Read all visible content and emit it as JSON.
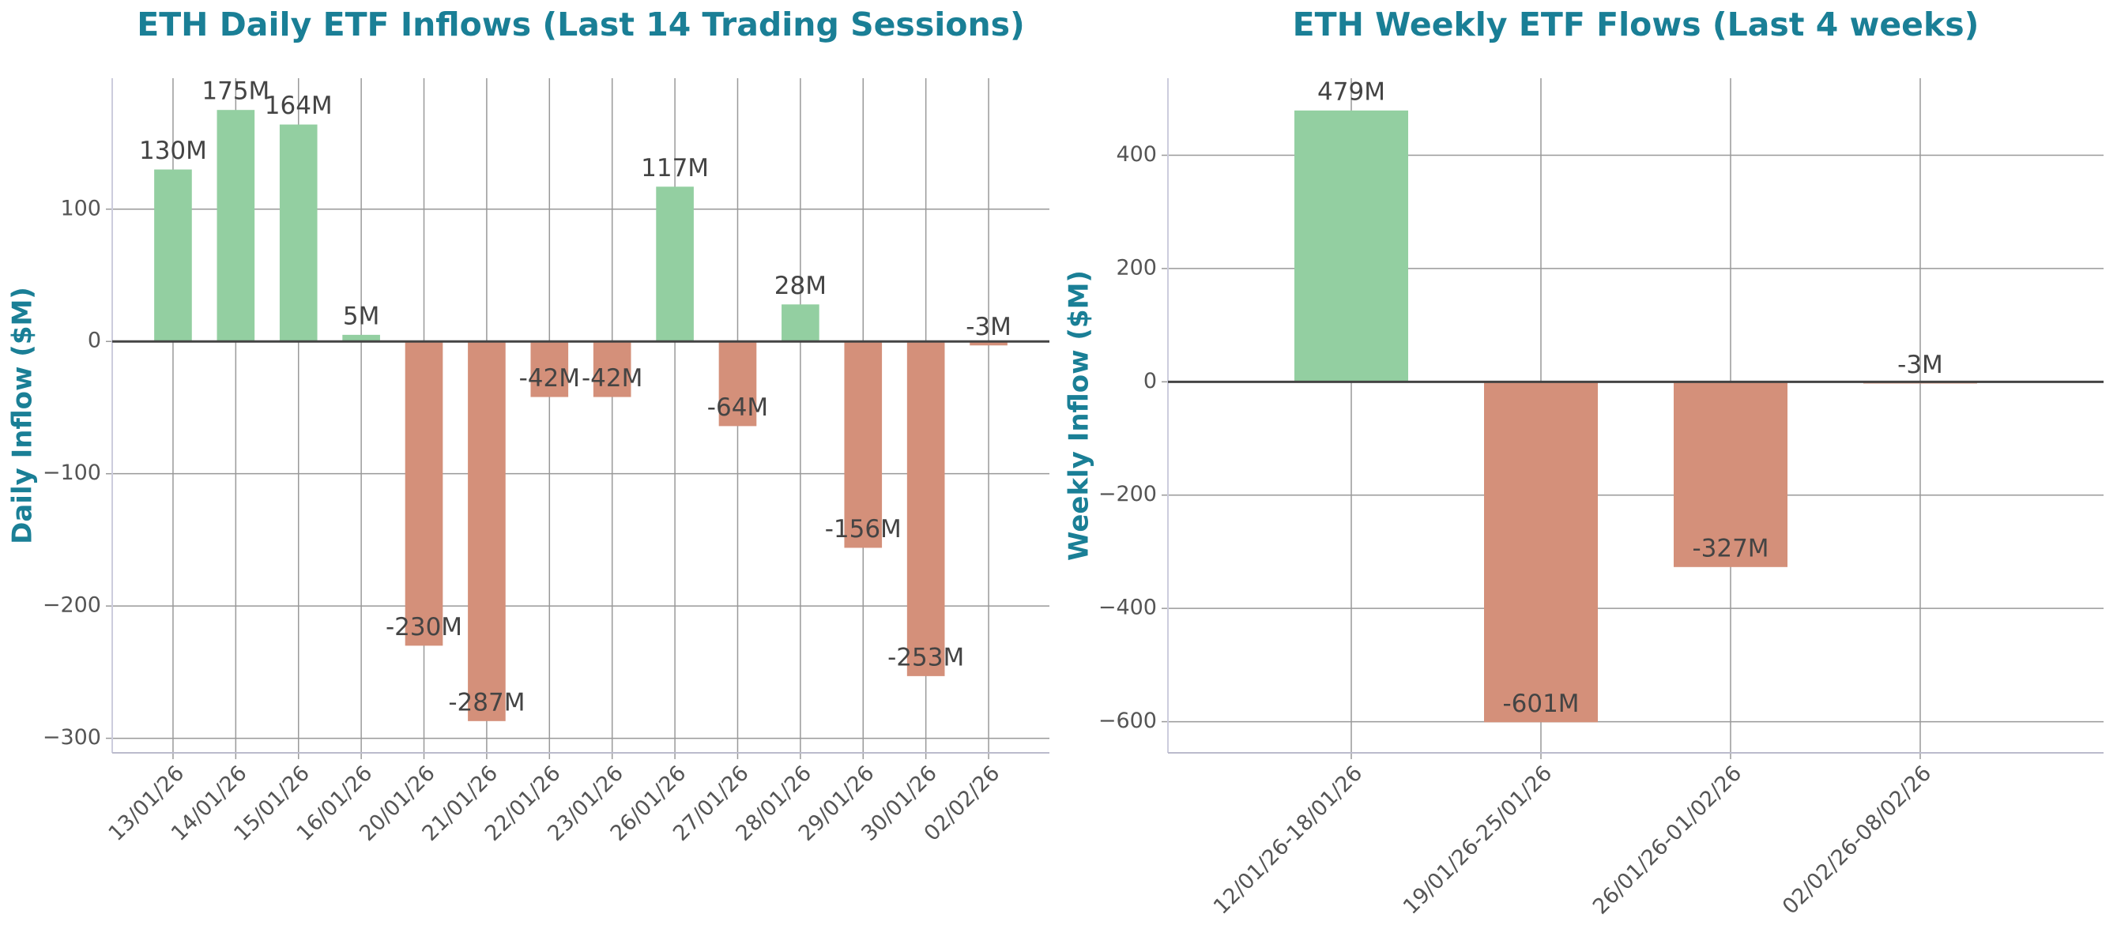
{
  "chart_data": [
    {
      "type": "bar",
      "title": "ETH Daily ETF Inflows (Last 14 Trading Sessions)",
      "ylabel": "Daily Inflow ($M)",
      "categories": [
        "13/01/26",
        "14/01/26",
        "15/01/26",
        "16/01/26",
        "20/01/26",
        "21/01/26",
        "22/01/26",
        "23/01/26",
        "26/01/26",
        "27/01/26",
        "28/01/26",
        "29/01/26",
        "30/01/26",
        "02/02/26"
      ],
      "values": [
        130,
        175,
        164,
        5,
        -230,
        -287,
        -42,
        -42,
        117,
        -64,
        28,
        -156,
        -253,
        -3
      ],
      "value_labels": [
        "130M",
        "175M",
        "164M",
        "5M",
        "-230M",
        "-287M",
        "-42M",
        "-42M",
        "117M",
        "-64M",
        "28M",
        "-156M",
        "-253M",
        "-3M"
      ],
      "positive_color": "#93cfa1",
      "negative_color": "#d4907a",
      "ylim": [
        -311,
        199
      ],
      "yticks": [
        {
          "value": -300,
          "label": "−300"
        },
        {
          "value": -200,
          "label": "−200"
        },
        {
          "value": -100,
          "label": "−100"
        },
        0,
        100
      ],
      "grid": true
    },
    {
      "type": "bar",
      "title": "ETH Weekly ETF Flows (Last 4 weeks)",
      "ylabel": "Weekly Inflow ($M)",
      "categories": [
        "12/01/26-18/01/26",
        "19/01/26-25/01/26",
        "26/01/26-01/02/26",
        "02/02/26-08/02/26"
      ],
      "values": [
        479,
        -601,
        -327,
        -3
      ],
      "value_labels": [
        "479M",
        "-601M",
        "-327M",
        "-3M"
      ],
      "positive_color": "#93cfa1",
      "negative_color": "#d4907a",
      "ylim": [
        -655,
        536
      ],
      "yticks": [
        {
          "value": -600,
          "label": "−600"
        },
        {
          "value": -400,
          "label": "−400"
        },
        {
          "value": -200,
          "label": "−200"
        },
        0,
        200,
        400
      ],
      "grid": true
    }
  ]
}
